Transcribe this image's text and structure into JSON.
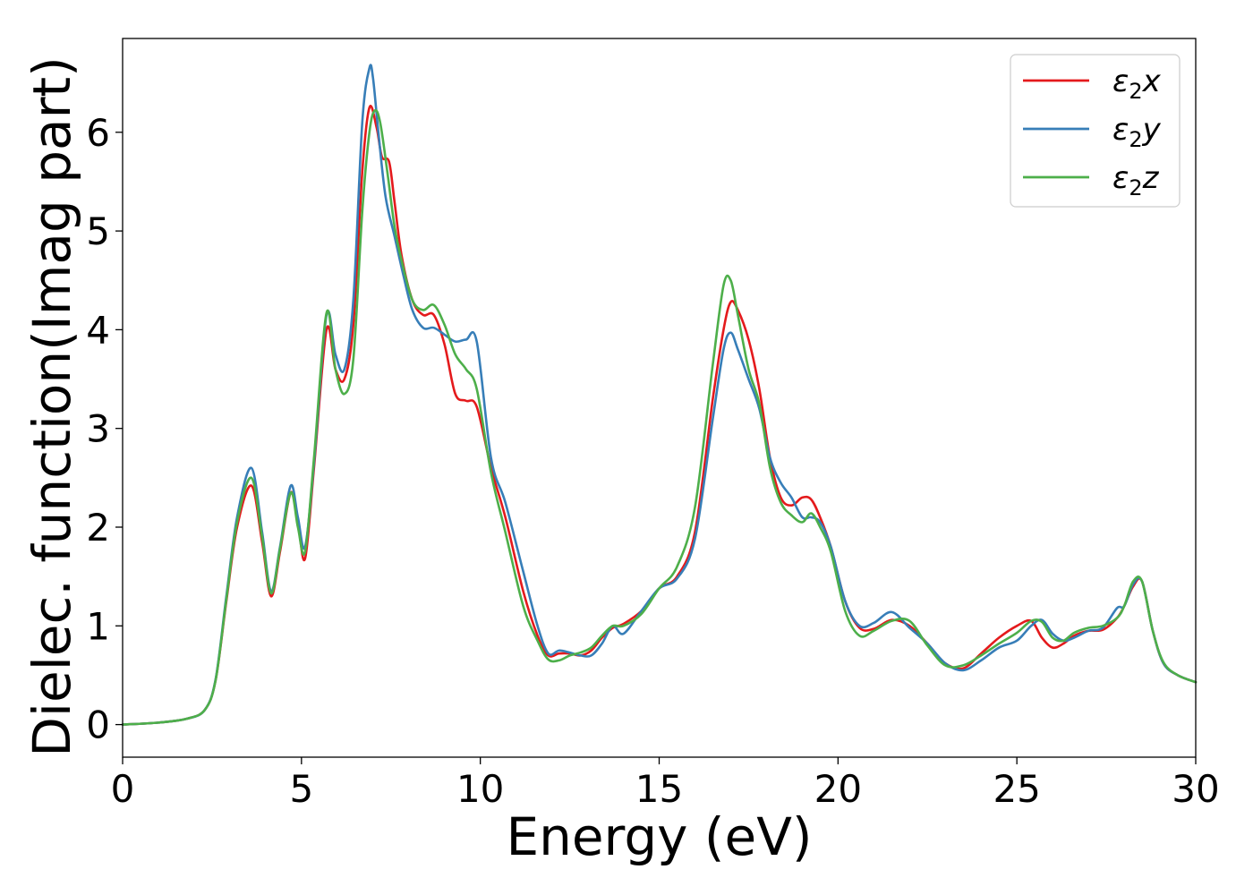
{
  "chart_data": {
    "type": "line",
    "title": "",
    "xlabel": "Energy (eV)",
    "ylabel": "Dielec. function(Imag part)",
    "xlim": [
      0,
      30
    ],
    "ylim": [
      -0.33,
      6.95
    ],
    "xticks": [
      0,
      5,
      10,
      15,
      20,
      25,
      30
    ],
    "yticks": [
      0,
      1,
      2,
      3,
      4,
      5,
      6
    ],
    "grid": false,
    "legend_position": "top-right",
    "series": [
      {
        "name": "ε₂x",
        "legend_base": "ε",
        "legend_sub": "2",
        "legend_var": "x",
        "color": "#e41a1c",
        "x": [
          0,
          1,
          1.8,
          2.3,
          2.6,
          2.9,
          3.2,
          3.6,
          3.9,
          4.15,
          4.4,
          4.7,
          4.9,
          5.1,
          5.35,
          5.7,
          5.95,
          6.2,
          6.45,
          6.7,
          6.9,
          7.1,
          7.25,
          7.45,
          7.6,
          7.8,
          8.1,
          8.4,
          8.7,
          9.0,
          9.3,
          9.6,
          9.9,
          10.3,
          10.7,
          11.2,
          11.6,
          11.9,
          12.2,
          12.5,
          12.8,
          13.1,
          13.4,
          13.7,
          14.0,
          14.5,
          15.0,
          15.5,
          16.0,
          16.5,
          16.8,
          17.0,
          17.2,
          17.5,
          17.8,
          18.1,
          18.4,
          18.7,
          19.0,
          19.25,
          19.5,
          19.8,
          20.2,
          20.6,
          21.0,
          21.5,
          22.0,
          22.5,
          23.0,
          23.5,
          24.0,
          24.5,
          25.0,
          25.4,
          25.7,
          26.0,
          26.3,
          26.6,
          27.0,
          27.4,
          27.8,
          28.0,
          28.25,
          28.5,
          28.8,
          29.1,
          29.5,
          30.0
        ],
        "values": [
          0,
          0.02,
          0.06,
          0.15,
          0.45,
          1.25,
          2.0,
          2.42,
          1.85,
          1.3,
          1.75,
          2.35,
          2.05,
          1.68,
          2.6,
          4.0,
          3.6,
          3.5,
          4.05,
          5.6,
          6.25,
          6.05,
          5.75,
          5.7,
          5.3,
          4.75,
          4.3,
          4.15,
          4.15,
          3.85,
          3.35,
          3.28,
          3.22,
          2.6,
          2.1,
          1.35,
          0.9,
          0.7,
          0.72,
          0.72,
          0.7,
          0.75,
          0.88,
          0.98,
          1.02,
          1.15,
          1.38,
          1.5,
          1.95,
          3.3,
          4.0,
          4.28,
          4.2,
          3.9,
          3.4,
          2.7,
          2.3,
          2.22,
          2.3,
          2.28,
          2.1,
          1.8,
          1.25,
          0.98,
          0.97,
          1.06,
          1.0,
          0.82,
          0.62,
          0.57,
          0.72,
          0.88,
          1.0,
          1.05,
          0.88,
          0.78,
          0.82,
          0.9,
          0.95,
          0.96,
          1.08,
          1.2,
          1.4,
          1.45,
          0.95,
          0.62,
          0.5,
          0.43
        ]
      },
      {
        "name": "ε₂y",
        "legend_base": "ε",
        "legend_sub": "2",
        "legend_var": "y",
        "color": "#377eb8",
        "x": [
          0,
          1,
          1.8,
          2.3,
          2.6,
          2.9,
          3.2,
          3.6,
          3.9,
          4.15,
          4.4,
          4.7,
          4.9,
          5.1,
          5.35,
          5.7,
          5.95,
          6.2,
          6.45,
          6.7,
          6.9,
          7.0,
          7.15,
          7.35,
          7.6,
          7.85,
          8.1,
          8.4,
          8.7,
          9.0,
          9.3,
          9.6,
          9.9,
          10.3,
          10.7,
          11.2,
          11.6,
          11.9,
          12.2,
          12.5,
          12.8,
          13.1,
          13.4,
          13.7,
          14.0,
          14.5,
          15.0,
          15.5,
          16.0,
          16.5,
          16.8,
          17.0,
          17.2,
          17.5,
          17.8,
          18.1,
          18.4,
          18.7,
          19.0,
          19.25,
          19.5,
          19.8,
          20.2,
          20.6,
          21.0,
          21.5,
          22.0,
          22.5,
          23.0,
          23.5,
          24.0,
          24.5,
          25.0,
          25.4,
          25.7,
          26.0,
          26.3,
          26.6,
          27.0,
          27.4,
          27.8,
          28.0,
          28.25,
          28.5,
          28.8,
          29.1,
          29.5,
          30.0
        ],
        "values": [
          0,
          0.02,
          0.06,
          0.15,
          0.46,
          1.3,
          2.1,
          2.6,
          1.95,
          1.35,
          1.8,
          2.42,
          2.1,
          1.8,
          2.65,
          4.15,
          3.75,
          3.6,
          4.3,
          6.1,
          6.65,
          6.55,
          6.0,
          5.35,
          4.95,
          4.55,
          4.2,
          4.02,
          4.02,
          3.95,
          3.88,
          3.9,
          3.88,
          2.7,
          2.25,
          1.55,
          1.0,
          0.72,
          0.75,
          0.73,
          0.7,
          0.7,
          0.82,
          1.0,
          0.92,
          1.15,
          1.38,
          1.48,
          1.88,
          3.1,
          3.8,
          3.97,
          3.8,
          3.5,
          3.2,
          2.7,
          2.45,
          2.3,
          2.1,
          2.1,
          2.05,
          1.8,
          1.25,
          1.0,
          1.03,
          1.14,
          0.98,
          0.82,
          0.62,
          0.55,
          0.65,
          0.78,
          0.85,
          1.0,
          1.06,
          0.92,
          0.85,
          0.88,
          0.95,
          0.98,
          1.18,
          1.2,
          1.42,
          1.45,
          0.95,
          0.62,
          0.5,
          0.43
        ]
      },
      {
        "name": "ε₂z",
        "legend_base": "ε",
        "legend_sub": "2",
        "legend_var": "z",
        "color": "#4daf4a",
        "x": [
          0,
          1,
          1.8,
          2.3,
          2.6,
          2.9,
          3.2,
          3.6,
          3.9,
          4.15,
          4.4,
          4.7,
          4.9,
          5.1,
          5.35,
          5.7,
          5.95,
          6.2,
          6.45,
          6.7,
          6.9,
          7.05,
          7.2,
          7.4,
          7.6,
          7.8,
          8.1,
          8.4,
          8.7,
          9.0,
          9.3,
          9.6,
          9.9,
          10.3,
          10.7,
          11.2,
          11.6,
          11.9,
          12.2,
          12.5,
          12.8,
          13.1,
          13.4,
          13.7,
          14.0,
          14.5,
          15.0,
          15.5,
          16.0,
          16.5,
          16.8,
          17.0,
          17.2,
          17.5,
          17.8,
          18.1,
          18.4,
          18.7,
          19.0,
          19.25,
          19.5,
          19.8,
          20.2,
          20.6,
          21.0,
          21.5,
          22.0,
          22.5,
          23.0,
          23.5,
          24.0,
          24.5,
          25.0,
          25.4,
          25.7,
          26.0,
          26.3,
          26.6,
          27.0,
          27.4,
          27.8,
          28.0,
          28.25,
          28.5,
          28.8,
          29.1,
          29.5,
          30.0
        ],
        "values": [
          0,
          0.02,
          0.06,
          0.15,
          0.45,
          1.27,
          2.05,
          2.5,
          1.9,
          1.33,
          1.78,
          2.35,
          2.0,
          1.75,
          2.7,
          4.17,
          3.6,
          3.35,
          3.7,
          5.2,
          6.0,
          6.22,
          6.1,
          5.6,
          5.05,
          4.7,
          4.3,
          4.2,
          4.25,
          4.05,
          3.75,
          3.6,
          3.4,
          2.55,
          1.95,
          1.2,
          0.85,
          0.66,
          0.65,
          0.7,
          0.73,
          0.78,
          0.9,
          1.0,
          1.0,
          1.12,
          1.38,
          1.6,
          2.2,
          3.65,
          4.45,
          4.5,
          4.15,
          3.6,
          3.25,
          2.6,
          2.25,
          2.12,
          2.05,
          2.14,
          2.0,
          1.75,
          1.15,
          0.9,
          0.95,
          1.05,
          1.05,
          0.8,
          0.6,
          0.6,
          0.7,
          0.82,
          0.93,
          1.05,
          1.04,
          0.88,
          0.85,
          0.93,
          0.98,
          1.0,
          1.08,
          1.2,
          1.45,
          1.45,
          0.95,
          0.63,
          0.5,
          0.43
        ]
      }
    ]
  }
}
